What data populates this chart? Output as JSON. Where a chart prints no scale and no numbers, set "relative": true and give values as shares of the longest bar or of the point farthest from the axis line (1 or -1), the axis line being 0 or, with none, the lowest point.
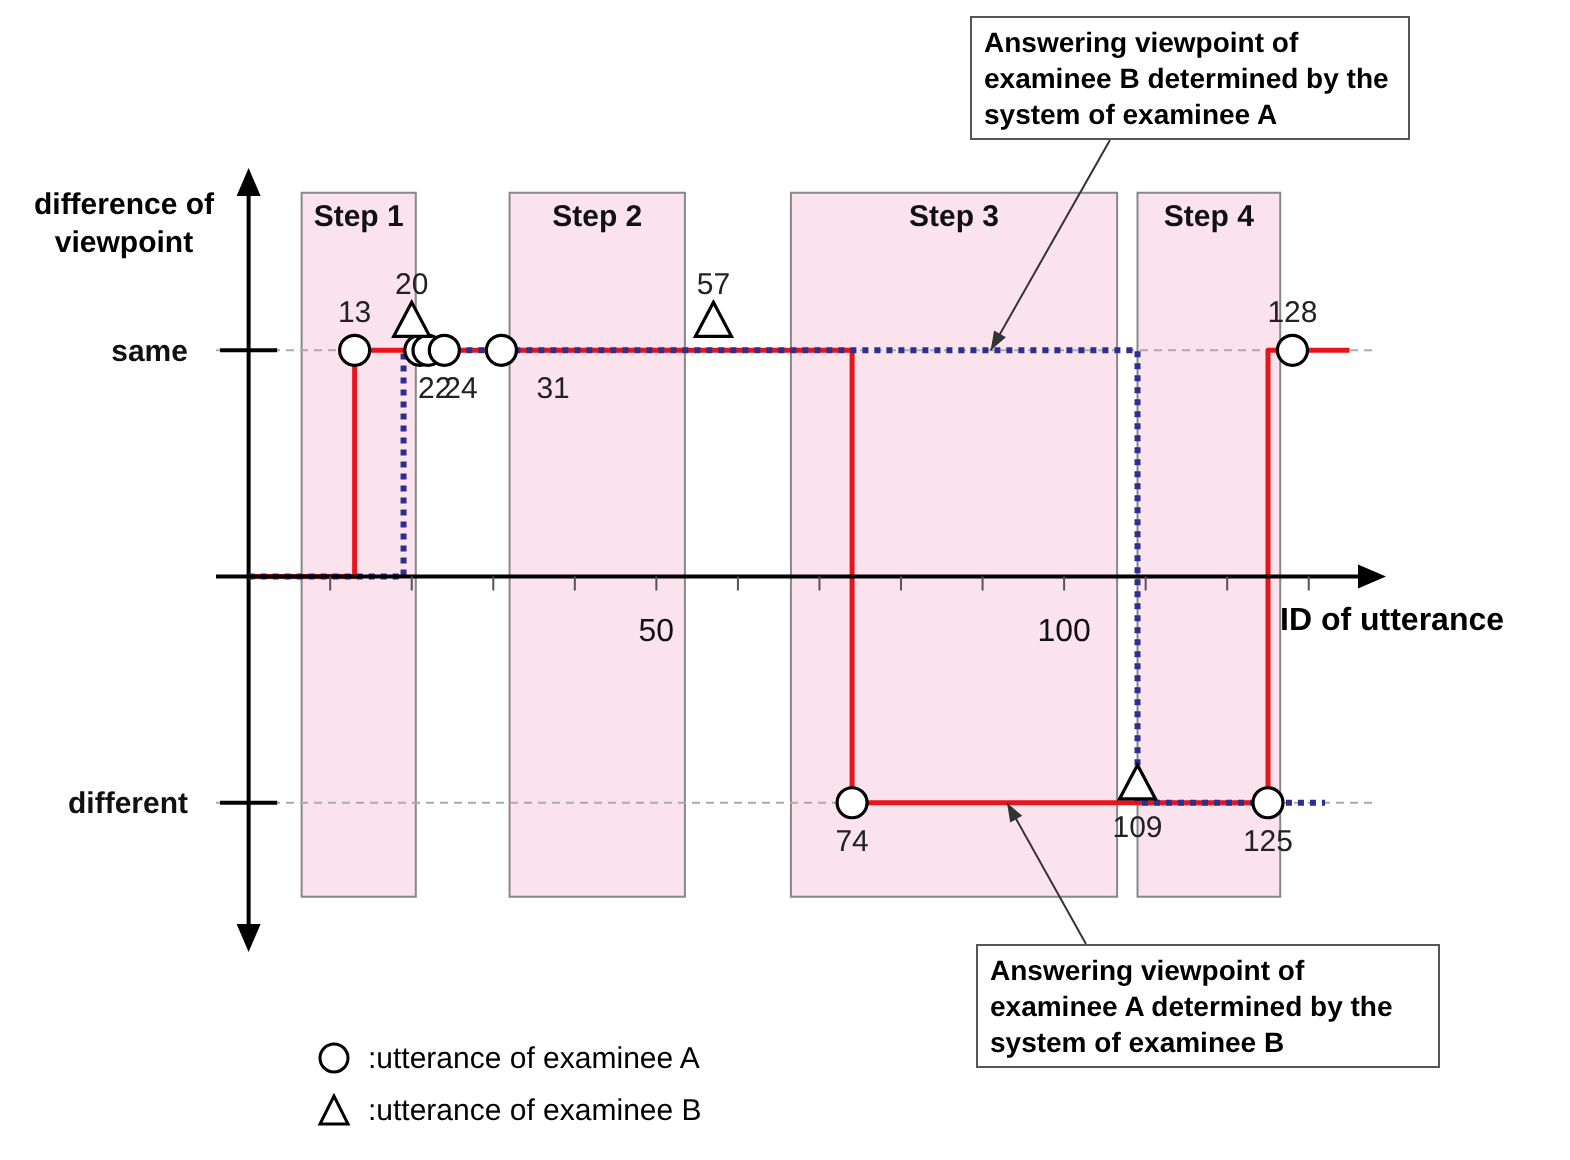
{
  "chart_data": {
    "type": "step",
    "relative": true,
    "ylabel": "difference of viewpoint",
    "xlabel": "ID of utterance",
    "xlim": [
      -4,
      138
    ],
    "xticks": [
      {
        "value": 10,
        "label": null
      },
      {
        "value": 20,
        "label": null
      },
      {
        "value": 30,
        "label": null
      },
      {
        "value": 40,
        "label": null
      },
      50,
      {
        "value": 60,
        "label": null
      },
      {
        "value": 70,
        "label": null
      },
      {
        "value": 80,
        "label": null
      },
      {
        "value": 90,
        "label": null
      },
      100,
      {
        "value": 110,
        "label": null
      },
      {
        "value": 120,
        "label": null
      },
      {
        "value": 130,
        "label": null
      }
    ],
    "ref_lines": [
      {
        "axis": "y",
        "value": 0.89,
        "label": "same",
        "color": "#aaaaaa",
        "line_style": "dashed"
      },
      {
        "axis": "y",
        "value": -0.89,
        "label": "different",
        "color": "#aaaaaa",
        "line_style": "dashed"
      }
    ],
    "legend": "bottom",
    "bands": [
      {
        "axis": "x",
        "from": 6.5,
        "to": 20.5,
        "label": "Step 1",
        "color": "#fbe3ee"
      },
      {
        "axis": "x",
        "from": 32,
        "to": 53.5,
        "label": "Step 2",
        "color": "#fbe3ee"
      },
      {
        "axis": "x",
        "from": 66.5,
        "to": 106.5,
        "label": "Step 3",
        "color": "#fbe3ee"
      },
      {
        "axis": "x",
        "from": 109,
        "to": 126.5,
        "label": "Step 4",
        "color": "#fbe3ee"
      }
    ],
    "series": [
      {
        "color": "#e8141c",
        "x": [
          0,
          13,
          74,
          125,
          135
        ],
        "values": [
          0,
          0.89,
          -0.89,
          0.89,
          0.89
        ],
        "line_style": "solid",
        "marker": "none"
      },
      {
        "color": "#2e2e8f",
        "x": [
          0,
          19,
          109,
          132
        ],
        "values": [
          0,
          0.89,
          -0.89,
          -0.89
        ],
        "line_style": "dotted",
        "marker": "none"
      },
      {
        "type": "scatter",
        "name": ":utterance of examinee A",
        "color": "#000000",
        "marker": "circle",
        "x": [
          13,
          21,
          22,
          24,
          31,
          74,
          125,
          128
        ],
        "values": [
          0.89,
          0.89,
          0.89,
          0.89,
          0.89,
          -0.89,
          -0.89,
          0.89
        ]
      },
      {
        "type": "scatter",
        "name": ":utterance of examinee B",
        "color": "#000000",
        "marker": "triangle",
        "x": [
          20,
          57,
          109
        ],
        "values": [
          1,
          1,
          -0.82
        ]
      }
    ],
    "annotations": [
      {
        "text": "Answering viewpoint of examinee B determined by the system of examinee A",
        "x": 91,
        "y": 0.89
      },
      {
        "text": "Answering viewpoint of examinee A determined by the system of examinee B",
        "x": 93,
        "y": -0.89
      },
      {
        "text": "13",
        "x": 13,
        "y": 0.89
      },
      {
        "text": "22",
        "x": 22,
        "y": 0.89
      },
      {
        "text": "24",
        "x": 24,
        "y": 0.89
      },
      {
        "text": "31",
        "x": 31,
        "y": 0.89
      },
      {
        "text": "74",
        "x": 74,
        "y": -0.89
      },
      {
        "text": "125",
        "x": 125,
        "y": -0.89
      },
      {
        "text": "128",
        "x": 128,
        "y": 0.89
      },
      {
        "text": "20",
        "x": 20,
        "y": 1
      },
      {
        "text": "57",
        "x": 57,
        "y": 1
      },
      {
        "text": "109",
        "x": 109,
        "y": -0.82
      }
    ]
  }
}
